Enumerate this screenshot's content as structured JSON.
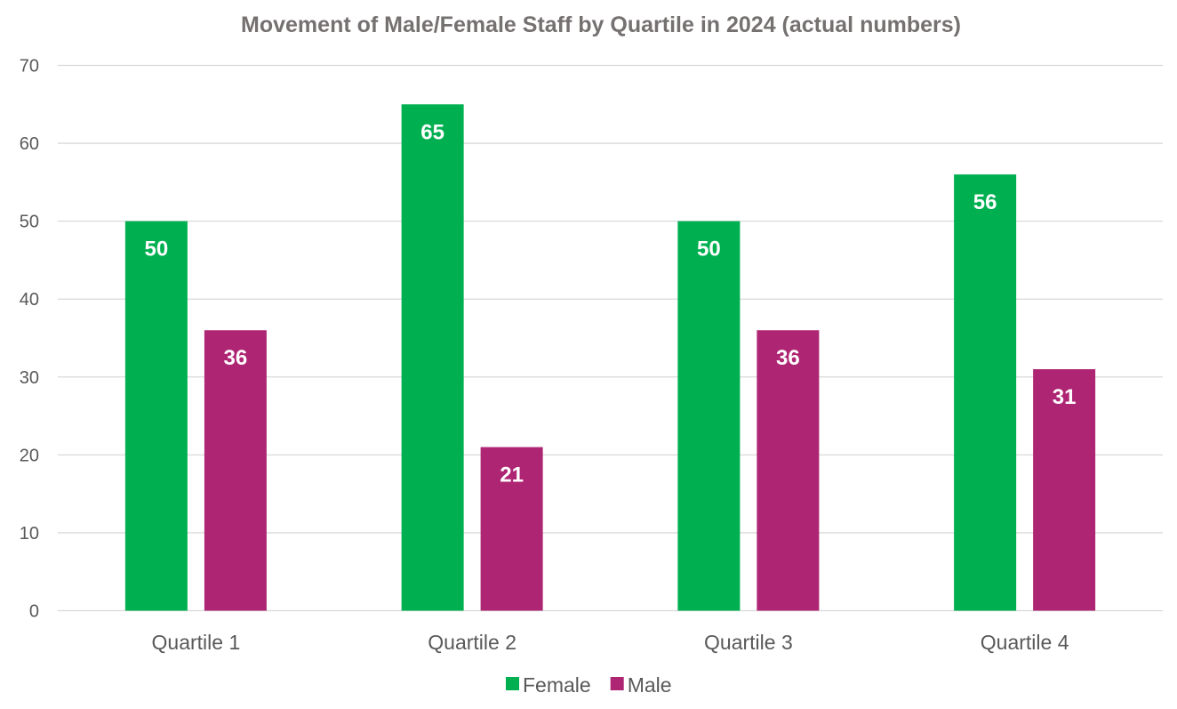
{
  "chart_data": {
    "type": "bar",
    "title": "Movement of Male/Female Staff by Quartile in 2024 (actual numbers)",
    "xlabel": "",
    "ylabel": "",
    "categories": [
      "Quartile 1",
      "Quartile 2",
      "Quartile 3",
      "Quartile 4"
    ],
    "series": [
      {
        "name": "Female",
        "color": "#00b050",
        "values": [
          50,
          65,
          50,
          56
        ]
      },
      {
        "name": "Male",
        "color": "#ae2573",
        "values": [
          36,
          21,
          36,
          31
        ]
      }
    ],
    "ylim": [
      0,
      70
    ],
    "yticks": [
      0,
      10,
      20,
      30,
      40,
      50,
      60,
      70
    ],
    "grid": true,
    "data_labels": true,
    "legend_position": "bottom"
  }
}
